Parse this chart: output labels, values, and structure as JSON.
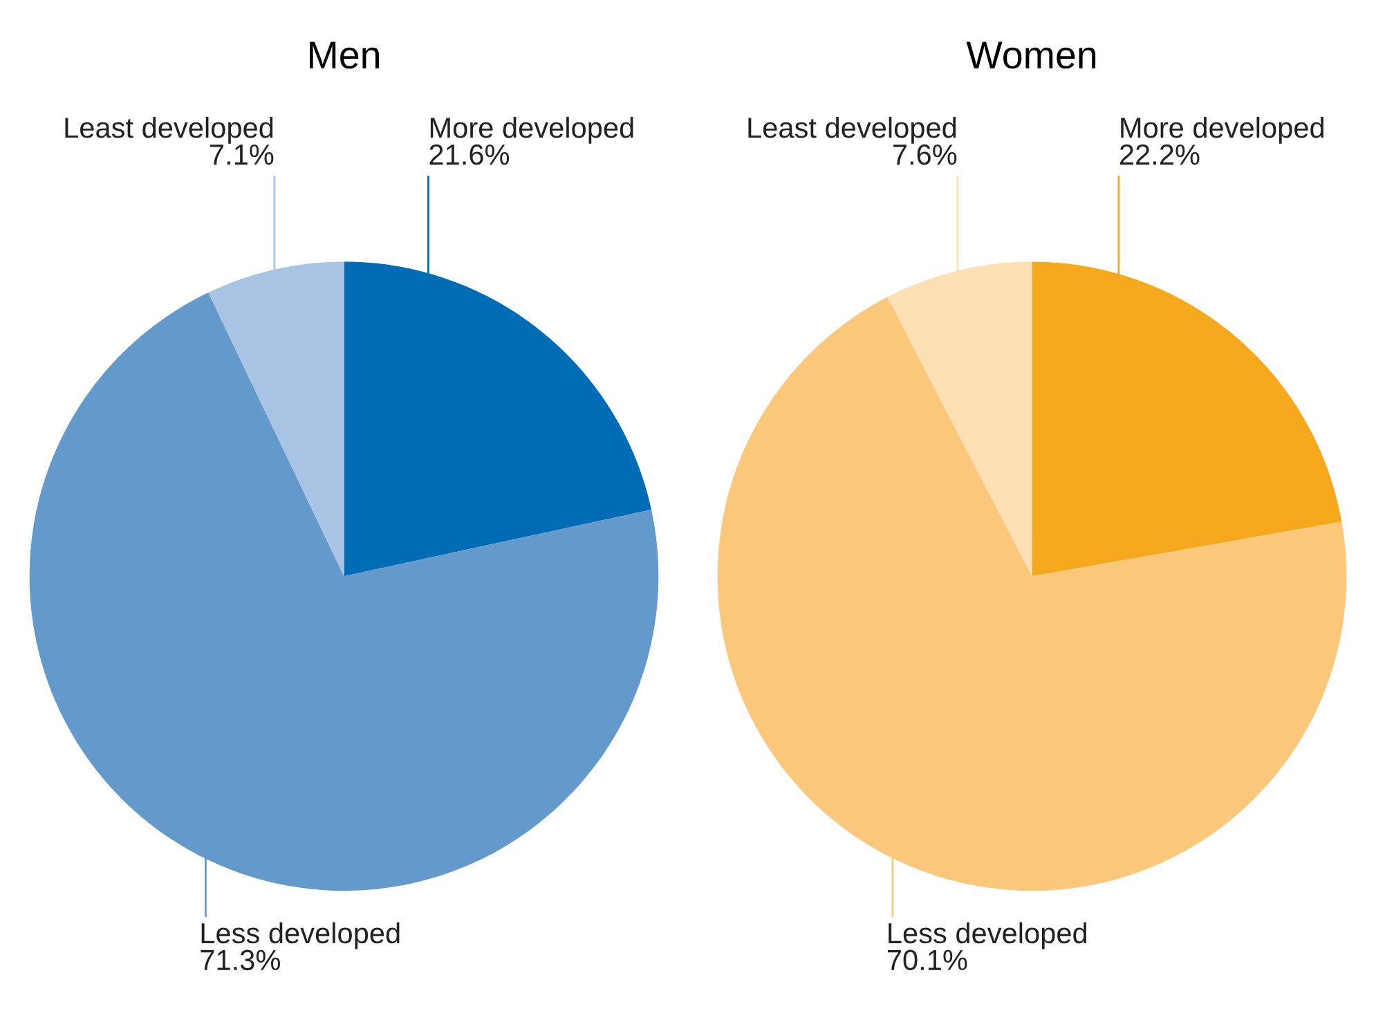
{
  "chart_data": [
    {
      "type": "pie",
      "title": "Men",
      "categories": [
        "More developed",
        "Less developed",
        "Least developed"
      ],
      "values": [
        21.6,
        71.3,
        7.1
      ],
      "colors": [
        "#006cb5",
        "#6399cb",
        "#a9c3e4"
      ],
      "value_labels": [
        "21.6%",
        "71.3%",
        "7.1%"
      ]
    },
    {
      "type": "pie",
      "title": "Women",
      "categories": [
        "More developed",
        "Less developed",
        "Least developed"
      ],
      "values": [
        22.2,
        70.1,
        7.6
      ],
      "colors": [
        "#f6a81d",
        "#fbc87b",
        "#fcdfb3"
      ],
      "value_labels": [
        "22.2%",
        "70.1%",
        "7.6%"
      ]
    }
  ]
}
